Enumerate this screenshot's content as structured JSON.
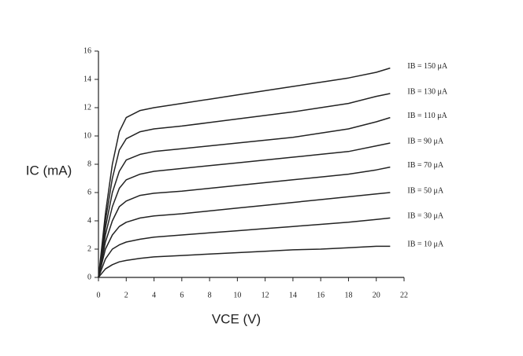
{
  "chart_data": {
    "type": "line",
    "x_label": "VCE (V)",
    "y_label": "IC (mA)",
    "x": [
      0,
      0.5,
      1,
      1.5,
      2,
      3,
      4,
      6,
      8,
      10,
      12,
      14,
      16,
      18,
      20,
      21
    ],
    "series": [
      {
        "name": "IB = 150 μA",
        "color": "#222222",
        "values": [
          0,
          4.5,
          8,
          10.3,
          11.3,
          11.8,
          12.0,
          12.3,
          12.6,
          12.9,
          13.2,
          13.5,
          13.8,
          14.1,
          14.5,
          14.8
        ]
      },
      {
        "name": "IB = 130 μA",
        "color": "#222222",
        "values": [
          0,
          4,
          7,
          9,
          9.8,
          10.3,
          10.5,
          10.7,
          10.95,
          11.2,
          11.45,
          11.7,
          12.0,
          12.3,
          12.8,
          13.0
        ]
      },
      {
        "name": "IB = 110 μA",
        "color": "#222222",
        "values": [
          0,
          3.5,
          6,
          7.5,
          8.3,
          8.7,
          8.9,
          9.1,
          9.3,
          9.5,
          9.7,
          9.9,
          10.2,
          10.5,
          11.0,
          11.3
        ]
      },
      {
        "name": "IB = 90 μA",
        "color": "#222222",
        "values": [
          0,
          3,
          5,
          6.3,
          6.9,
          7.3,
          7.5,
          7.7,
          7.9,
          8.1,
          8.3,
          8.5,
          8.7,
          8.9,
          9.3,
          9.5
        ]
      },
      {
        "name": "IB = 70 μA",
        "color": "#222222",
        "values": [
          0,
          2.5,
          4,
          5,
          5.4,
          5.8,
          5.95,
          6.1,
          6.3,
          6.5,
          6.7,
          6.9,
          7.1,
          7.3,
          7.6,
          7.8
        ]
      },
      {
        "name": "IB = 50 μA",
        "color": "#222222",
        "values": [
          0,
          2,
          3,
          3.6,
          3.9,
          4.2,
          4.35,
          4.5,
          4.7,
          4.9,
          5.1,
          5.3,
          5.5,
          5.7,
          5.9,
          6.0
        ]
      },
      {
        "name": "IB = 30 μA",
        "color": "#222222",
        "values": [
          0,
          1.3,
          2,
          2.3,
          2.5,
          2.7,
          2.85,
          3.0,
          3.15,
          3.3,
          3.45,
          3.6,
          3.75,
          3.9,
          4.1,
          4.2
        ]
      },
      {
        "name": "IB = 10 μA",
        "color": "#222222",
        "values": [
          0,
          0.6,
          0.9,
          1.1,
          1.2,
          1.35,
          1.45,
          1.55,
          1.65,
          1.75,
          1.85,
          1.95,
          2.0,
          2.1,
          2.2,
          2.2
        ]
      }
    ],
    "xlim": [
      0,
      22
    ],
    "xticks": [
      0,
      2,
      4,
      6,
      8,
      10,
      12,
      14,
      16,
      18,
      20,
      22
    ],
    "ylim": [
      0,
      16
    ],
    "yticks": [
      0,
      2,
      4,
      6,
      8,
      10,
      12,
      14,
      16
    ],
    "grid": false
  }
}
